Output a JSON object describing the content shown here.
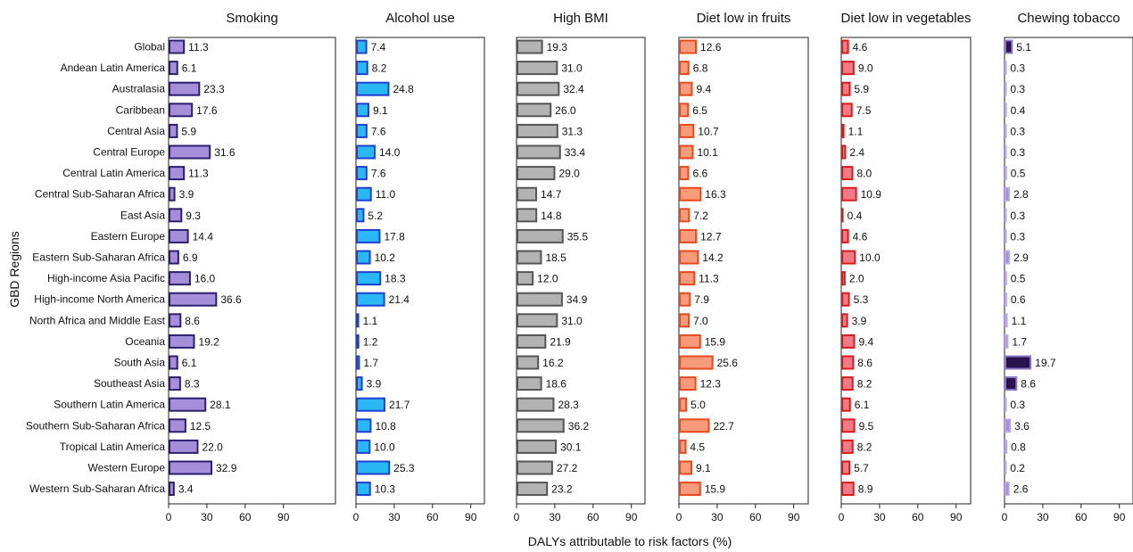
{
  "chart_data": {
    "type": "bar",
    "orientation": "horizontal",
    "xlabel": "DALYs attributable to risk factors (%)",
    "ylabel": "GBD Regions",
    "xlim": [
      0,
      100
    ],
    "xticks": [
      "0",
      "30",
      "60",
      "90"
    ],
    "grid": false,
    "categories": [
      "Global",
      "Andean Latin America",
      "Australasia",
      "Caribbean",
      "Central Asia",
      "Central Europe",
      "Central Latin America",
      "Central Sub-Saharan Africa",
      "East Asia",
      "Eastern Europe",
      "Eastern Sub-Saharan Africa",
      "High-income Asia Pacific",
      "High-income North America",
      "North Africa and Middle East",
      "Oceania",
      "South Asia",
      "Southeast Asia",
      "Southern Latin America",
      "Southern Sub-Saharan Africa",
      "Tropical Latin America",
      "Western Europe",
      "Western Sub-Saharan Africa"
    ],
    "series": [
      {
        "name": "Smoking",
        "fill": "#a48fd8",
        "stroke": "#2a1f6e",
        "values": [
          11.3,
          6.1,
          23.3,
          17.6,
          5.9,
          31.6,
          11.3,
          3.9,
          9.3,
          14.4,
          6.9,
          16.0,
          36.6,
          8.6,
          19.2,
          6.1,
          8.3,
          28.1,
          12.5,
          22.0,
          32.9,
          3.4
        ],
        "labels": [
          "11.3",
          "6.1",
          "23.3",
          "17.6",
          "5.9",
          "31.6",
          "11.3",
          "3.9",
          "9.3",
          "14.4",
          "6.9",
          "16.0",
          "36.6",
          "8.6",
          "19.2",
          "6.1",
          "8.3",
          "28.1",
          "12.5",
          "22.0",
          "32.9",
          "3.4"
        ]
      },
      {
        "name": "Alcohol use",
        "fill": "#2ab8f5",
        "stroke": "#1f3fcf",
        "values": [
          7.4,
          8.2,
          24.8,
          9.1,
          7.6,
          14.0,
          7.6,
          11.0,
          5.2,
          17.8,
          10.2,
          18.3,
          21.4,
          1.1,
          1.2,
          1.7,
          3.9,
          21.7,
          10.8,
          10.0,
          25.3,
          10.3
        ],
        "labels": [
          "7.4",
          "8.2",
          "24.8",
          "9.1",
          "7.6",
          "14.0",
          "7.6",
          "11.0",
          "5.2",
          "17.8",
          "10.2",
          "18.3",
          "21.4",
          "1.1",
          "1.2",
          "1.7",
          "3.9",
          "21.7",
          "10.8",
          "10.0",
          "25.3",
          "10.3"
        ]
      },
      {
        "name": "High BMI",
        "fill": "#b3b3b3",
        "stroke": "#555555",
        "values": [
          19.3,
          31.0,
          32.4,
          26.0,
          31.3,
          33.4,
          29.0,
          14.7,
          14.8,
          35.5,
          18.5,
          12.0,
          34.9,
          31.0,
          21.9,
          16.2,
          18.6,
          28.3,
          36.2,
          30.1,
          27.2,
          23.2
        ],
        "labels": [
          "19.3",
          "31.0",
          "32.4",
          "26.0",
          "31.3",
          "33.4",
          "29.0",
          "14.7",
          "14.8",
          "35.5",
          "18.5",
          "12.0",
          "34.9",
          "31.0",
          "21.9",
          "16.2",
          "18.6",
          "28.3",
          "36.2",
          "30.1",
          "27.2",
          "23.2"
        ]
      },
      {
        "name": "Diet low in fruits",
        "fill": "#f79b7a",
        "stroke": "#e8481f",
        "values": [
          12.6,
          6.8,
          9.4,
          6.5,
          10.7,
          10.1,
          6.6,
          16.3,
          7.2,
          12.7,
          14.2,
          11.3,
          7.9,
          7.0,
          15.9,
          25.6,
          12.3,
          5.0,
          22.7,
          4.5,
          9.1,
          15.9
        ],
        "labels": [
          "12.6",
          "6.8",
          "9.4",
          "6.5",
          "10.7",
          "10.1",
          "6.6",
          "16.3",
          "7.2",
          "12.7",
          "14.2",
          "11.3",
          "7.9",
          "7.0",
          "15.9",
          "25.6",
          "12.3",
          "5.0",
          "22.7",
          "4.5",
          "9.1",
          "15.9"
        ]
      },
      {
        "name": "Diet low in vegetables",
        "fill": "#f07a86",
        "stroke": "#d81a1f",
        "values": [
          4.6,
          9.0,
          5.9,
          7.5,
          1.1,
          2.4,
          8.0,
          10.9,
          0.4,
          4.6,
          10.0,
          2.0,
          5.3,
          3.9,
          9.4,
          8.6,
          8.2,
          6.1,
          9.5,
          8.2,
          5.7,
          8.9
        ],
        "labels": [
          "4.6",
          "9.0",
          "5.9",
          "7.5",
          "1.1",
          "2.4",
          "8.0",
          "10.9",
          "0.4",
          "4.6",
          "10.0",
          "2.0",
          "5.3",
          "3.9",
          "9.4",
          "8.6",
          "8.2",
          "6.1",
          "9.5",
          "8.2",
          "5.7",
          "8.9"
        ]
      },
      {
        "name": "Chewing tobacco",
        "fill": "#a48fd8",
        "stroke": "#b9a8e6",
        "values": [
          5.1,
          0.3,
          0.3,
          0.4,
          0.3,
          0.3,
          0.5,
          2.8,
          0.3,
          0.3,
          2.9,
          0.5,
          0.6,
          1.1,
          1.7,
          19.7,
          8.6,
          0.3,
          3.6,
          0.8,
          0.2,
          2.6
        ],
        "labels": [
          "5.1",
          "0.3",
          "0.3",
          "0.4",
          "0.3",
          "0.3",
          "0.5",
          "2.8",
          "0.3",
          "0.3",
          "2.9",
          "0.5",
          "0.6",
          "1.1",
          "1.7",
          "19.7",
          "8.6",
          "0.3",
          "3.6",
          "0.8",
          "0.2",
          "2.6"
        ],
        "highlight": {
          "fill": "#2a1450",
          "stroke": "#8a78c8",
          "indices": [
            0,
            15,
            16
          ]
        }
      }
    ]
  }
}
